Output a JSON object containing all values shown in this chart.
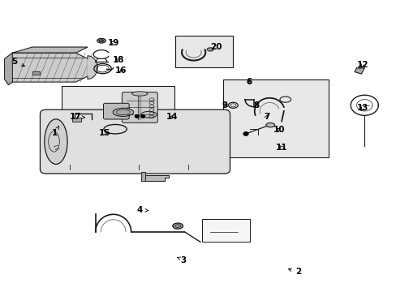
{
  "bg_color": "#ffffff",
  "fig_width": 4.89,
  "fig_height": 3.6,
  "dpi": 100,
  "dark": "#1a1a1a",
  "gray": "#666666",
  "light_gray": "#cccccc",
  "box_fill": "#e8e8e8",
  "label_positions": {
    "1": [
      0.13,
      0.545,
      0.148,
      0.57
    ],
    "2": [
      0.76,
      0.068,
      0.72,
      0.08
    ],
    "3": [
      0.47,
      0.108,
      0.445,
      0.118
    ],
    "4": [
      0.345,
      0.28,
      0.375,
      0.278
    ],
    "5": [
      0.028,
      0.79,
      0.068,
      0.77
    ],
    "6": [
      0.62,
      0.72,
      0.635,
      0.705
    ],
    "7": [
      0.68,
      0.6,
      0.678,
      0.615
    ],
    "8": [
      0.64,
      0.64,
      0.652,
      0.65
    ],
    "9": [
      0.56,
      0.64,
      0.58,
      0.632
    ],
    "10": [
      0.69,
      0.555,
      0.692,
      0.565
    ],
    "11": [
      0.695,
      0.495,
      0.7,
      0.508
    ],
    "12": [
      0.93,
      0.78,
      0.912,
      0.768
    ],
    "13": [
      0.93,
      0.63,
      0.91,
      0.62
    ],
    "14": [
      0.448,
      0.6,
      0.42,
      0.6
    ],
    "15": [
      0.248,
      0.545,
      0.278,
      0.545
    ],
    "16": [
      0.32,
      0.76,
      0.296,
      0.75
    ],
    "17": [
      0.175,
      0.6,
      0.215,
      0.598
    ],
    "18": [
      0.312,
      0.795,
      0.288,
      0.808
    ],
    "19": [
      0.3,
      0.855,
      0.276,
      0.858
    ],
    "20": [
      0.53,
      0.84,
      0.53,
      0.828
    ]
  }
}
